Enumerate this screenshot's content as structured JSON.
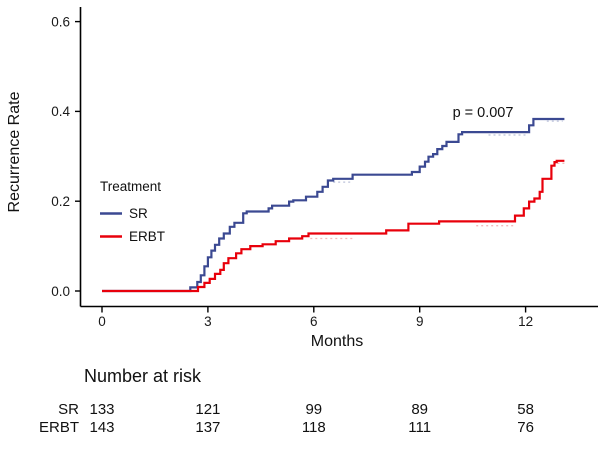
{
  "chart_data": {
    "type": "line",
    "subtype": "step-cumulative-incidence",
    "title": "",
    "xlabel": "Months",
    "ylabel": "Recurrence Rate",
    "annotation": "p = 0.007",
    "x_ticks": [
      "0",
      "3",
      "6",
      "9",
      "12"
    ],
    "x_tick_values": [
      0,
      3,
      6,
      9,
      12
    ],
    "y_ticks": [
      "0.0",
      "0.2",
      "0.4",
      "0.6"
    ],
    "y_tick_values": [
      0.0,
      0.2,
      0.4,
      0.6
    ],
    "xlim": [
      0,
      14
    ],
    "ylim": [
      0,
      0.63
    ],
    "grid": "off",
    "legend": {
      "title": "Treatment",
      "position": "inside-left-middle"
    },
    "series": [
      {
        "name": "SR",
        "color": "#3B4992",
        "curve_end_month": 13.1,
        "steps": [
          [
            0,
            0
          ],
          [
            2.5,
            0.008
          ],
          [
            2.7,
            0.02
          ],
          [
            2.8,
            0.035
          ],
          [
            2.9,
            0.055
          ],
          [
            3.0,
            0.075
          ],
          [
            3.1,
            0.09
          ],
          [
            3.2,
            0.103
          ],
          [
            3.32,
            0.117
          ],
          [
            3.45,
            0.128
          ],
          [
            3.62,
            0.143
          ],
          [
            3.75,
            0.152
          ],
          [
            4.0,
            0.173
          ],
          [
            4.1,
            0.177
          ],
          [
            4.72,
            0.184
          ],
          [
            4.82,
            0.19
          ],
          [
            5.3,
            0.199
          ],
          [
            5.42,
            0.202
          ],
          [
            5.78,
            0.21
          ],
          [
            6.1,
            0.221
          ],
          [
            6.25,
            0.232
          ],
          [
            6.4,
            0.246
          ],
          [
            6.55,
            0.25
          ],
          [
            7.1,
            0.259
          ],
          [
            8.78,
            0.265
          ],
          [
            9.0,
            0.277
          ],
          [
            9.15,
            0.288
          ],
          [
            9.25,
            0.299
          ],
          [
            9.38,
            0.305
          ],
          [
            9.5,
            0.316
          ],
          [
            9.64,
            0.323
          ],
          [
            9.76,
            0.332
          ],
          [
            10.1,
            0.349
          ],
          [
            10.2,
            0.354
          ],
          [
            12.1,
            0.369
          ],
          [
            12.22,
            0.383
          ]
        ]
      },
      {
        "name": "ERBT",
        "color": "#E8000B",
        "curve_end_month": 13.1,
        "steps": [
          [
            0,
            0
          ],
          [
            2.72,
            0.009
          ],
          [
            2.9,
            0.018
          ],
          [
            3.05,
            0.027
          ],
          [
            3.2,
            0.038
          ],
          [
            3.35,
            0.047
          ],
          [
            3.45,
            0.062
          ],
          [
            3.58,
            0.073
          ],
          [
            3.8,
            0.084
          ],
          [
            3.95,
            0.093
          ],
          [
            4.2,
            0.1
          ],
          [
            4.55,
            0.104
          ],
          [
            4.92,
            0.111
          ],
          [
            5.3,
            0.117
          ],
          [
            5.67,
            0.122
          ],
          [
            5.85,
            0.128
          ],
          [
            8.05,
            0.135
          ],
          [
            8.68,
            0.15
          ],
          [
            9.55,
            0.155
          ],
          [
            11.7,
            0.168
          ],
          [
            11.95,
            0.184
          ],
          [
            12.1,
            0.199
          ],
          [
            12.25,
            0.206
          ],
          [
            12.4,
            0.221
          ],
          [
            12.48,
            0.25
          ],
          [
            12.73,
            0.279
          ],
          [
            12.82,
            0.287
          ],
          [
            12.88,
            0.29
          ]
        ]
      }
    ],
    "censor_dashes": [
      {
        "series": "SR",
        "x0": 6.55,
        "x1": 7.05,
        "y": 0.2425,
        "color": "#bcc2da"
      },
      {
        "series": "SR",
        "x0": 10.95,
        "x1": 12.05,
        "y": 0.3475,
        "color": "#bcc2da"
      },
      {
        "series": "SR",
        "x0": 12.6,
        "x1": 13.05,
        "y": 0.3785,
        "color": "#bcc2da"
      },
      {
        "series": "ERBT",
        "x0": 5.9,
        "x1": 7.15,
        "y": 0.117,
        "color": "#f4b9bc"
      },
      {
        "series": "ERBT",
        "x0": 10.6,
        "x1": 11.7,
        "y": 0.1455,
        "color": "#f4b9bc"
      },
      {
        "series": "ERBT",
        "x0": 12.9,
        "x1": 13.12,
        "y": 0.2845,
        "color": "#f4b9bc"
      }
    ],
    "risk_table": {
      "title": "Number at risk",
      "time_points": [
        0,
        3,
        6,
        9,
        12
      ],
      "rows": [
        {
          "label": "SR",
          "counts": [
            133,
            121,
            99,
            89,
            58
          ]
        },
        {
          "label": "ERBT",
          "counts": [
            143,
            137,
            118,
            111,
            76
          ]
        }
      ]
    }
  }
}
